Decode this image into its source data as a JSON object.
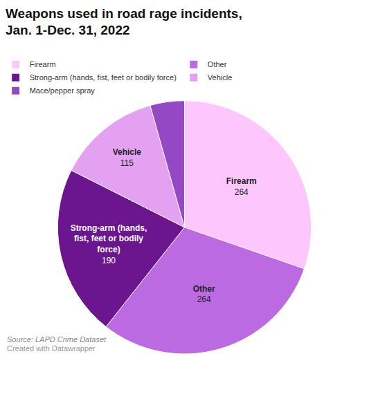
{
  "chart_data": {
    "type": "pie",
    "title": "Weapons used in road rage incidents, Jan. 1-Dec. 31, 2022",
    "categories": [
      "Firearm",
      "Other",
      "Strong-arm (hands, fist, feet or bodily force)",
      "Vehicle",
      "Mace/pepper spray"
    ],
    "values": [
      264,
      264,
      190,
      115,
      38
    ],
    "value_labels": [
      "264",
      "264",
      "190",
      "115",
      null
    ],
    "colors": [
      "#fdc6fc",
      "#bb6ae2",
      "#6b168f",
      "#e4a1f1",
      "#9548c3"
    ],
    "data_labels": true,
    "legend": "top",
    "annotations": [
      "Source: LAPD Crime Dataset",
      "Created with Datawrapper"
    ]
  }
}
